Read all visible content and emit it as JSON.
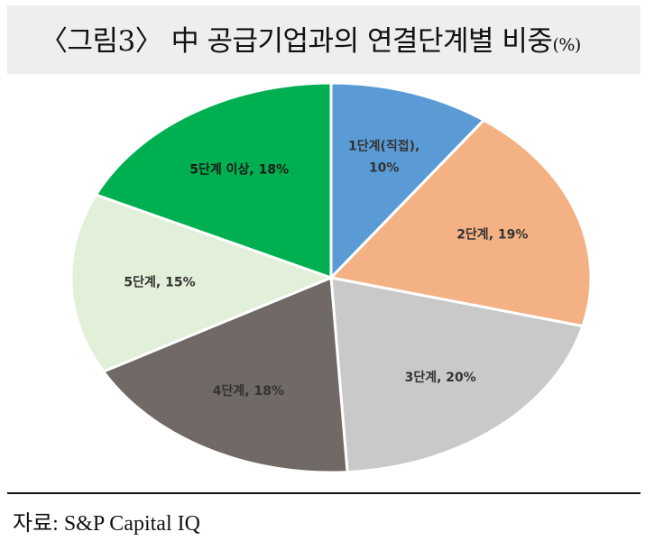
{
  "title": {
    "main": "〈그림3〉 中 공급기업과의 연결단계별 비중",
    "unit": "(%)"
  },
  "source": "자료: S&P Capital IQ",
  "chart_data": {
    "type": "pie",
    "title": "〈그림3〉 中 공급기업과의 연결단계별 비중(%)",
    "slices": [
      {
        "label": "1단계(직접), 10%",
        "line1": "1단계(직접),",
        "line2": "10%",
        "value": 10,
        "color": "#5b9bd5"
      },
      {
        "label": "2단계, 19%",
        "value": 19,
        "color": "#f4b183"
      },
      {
        "label": "3단계, 20%",
        "value": 20,
        "color": "#c9c9c9"
      },
      {
        "label": "4단계, 18%",
        "value": 18,
        "color": "#706965"
      },
      {
        "label": "5단계, 15%",
        "value": 15,
        "color": "#e2efd9"
      },
      {
        "label": "5단계 이상, 18%",
        "value": 18,
        "color": "#00b050"
      }
    ],
    "start_angle": "12 o'clock",
    "direction": "clockwise",
    "legend": "none",
    "data_labels": "inside"
  }
}
